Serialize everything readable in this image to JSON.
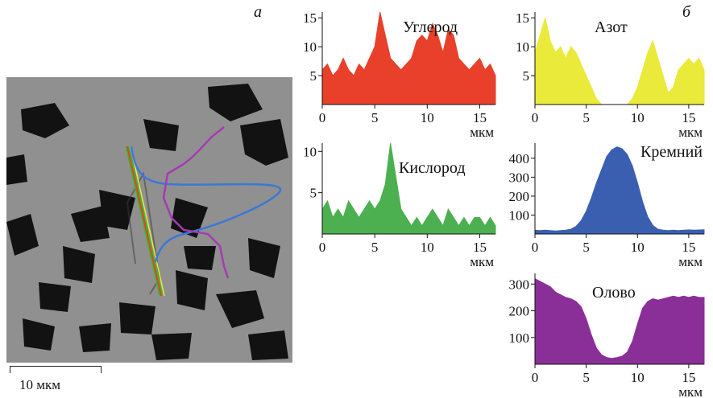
{
  "panel_labels": {
    "a": "а",
    "b": "б"
  },
  "scale_bar": {
    "label": "10 мкм",
    "length_um": 10
  },
  "colors": {
    "carbon": "#e8402a",
    "nitrogen": "#eaea3a",
    "oxygen": "#4caf50",
    "silicon": "#3a5fb0",
    "tin": "#8a2f98",
    "micrograph_bg": "#8a8a8a",
    "grain": "#121212"
  },
  "chart_data": [
    {
      "type": "area",
      "title": "Углерод",
      "xlabel": "мкм",
      "ylabel": "",
      "xlim": [
        0,
        16.5
      ],
      "ylim": [
        0,
        16
      ],
      "xticks": [
        0,
        5,
        10,
        15
      ],
      "yticks": [
        5,
        10,
        15
      ],
      "x": [
        0,
        0.5,
        1,
        1.5,
        2,
        2.5,
        3,
        3.5,
        4,
        4.5,
        5,
        5.5,
        6,
        6.5,
        7,
        7.5,
        8,
        8.5,
        9,
        9.5,
        10,
        10.5,
        11,
        11.5,
        12,
        12.5,
        13,
        13.5,
        14,
        14.5,
        15,
        15.5,
        16,
        16.5
      ],
      "y": [
        6,
        7,
        5,
        6,
        8,
        6,
        5,
        7,
        6,
        8,
        10,
        16,
        12,
        8,
        7,
        6,
        7,
        8,
        11,
        12,
        11,
        14,
        12,
        9,
        13,
        12,
        8,
        7,
        6,
        7,
        8,
        6,
        7,
        5
      ],
      "color_key": "carbon"
    },
    {
      "type": "area",
      "title": "Азот",
      "xlabel": "мкм",
      "ylabel": "",
      "xlim": [
        0,
        16.5
      ],
      "ylim": [
        0,
        16
      ],
      "xticks": [
        0,
        5,
        10,
        15
      ],
      "yticks": [
        5,
        10,
        15
      ],
      "x": [
        0,
        0.5,
        1,
        1.5,
        2,
        2.5,
        3,
        3.5,
        4,
        4.5,
        5,
        5.5,
        6,
        6.5,
        7,
        7.5,
        8,
        8.5,
        9,
        9.5,
        10,
        10.5,
        11,
        11.5,
        12,
        12.5,
        13,
        13.5,
        14,
        14.5,
        15,
        15.5,
        16,
        16.5
      ],
      "y": [
        9,
        12,
        15,
        11,
        9,
        10,
        8,
        10,
        9,
        7,
        5,
        3,
        1,
        0,
        0,
        0,
        0,
        0,
        0,
        1,
        3,
        6,
        9,
        11,
        8,
        5,
        2,
        3,
        6,
        7,
        8,
        7,
        8,
        6
      ],
      "color_key": "nitrogen"
    },
    {
      "type": "area",
      "title": "Кислород",
      "xlabel": "мкм",
      "ylabel": "",
      "xlim": [
        0,
        16.5
      ],
      "ylim": [
        0,
        11
      ],
      "xticks": [
        0,
        5,
        10,
        15
      ],
      "yticks": [
        5,
        10
      ],
      "x": [
        0,
        0.5,
        1,
        1.5,
        2,
        2.5,
        3,
        3.5,
        4,
        4.5,
        5,
        5.5,
        6,
        6.5,
        7,
        7.5,
        8,
        8.5,
        9,
        9.5,
        10,
        10.5,
        11,
        11.5,
        12,
        12.5,
        13,
        13.5,
        14,
        14.5,
        15,
        15.5,
        16,
        16.5
      ],
      "y": [
        3,
        4,
        2,
        3,
        2,
        4,
        3,
        2,
        3,
        4,
        3,
        4,
        6,
        11,
        7,
        3,
        2,
        1,
        2,
        1,
        2,
        3,
        2,
        1,
        3,
        2,
        1,
        2,
        1,
        2,
        2,
        1,
        2,
        1
      ],
      "color_key": "oxygen"
    },
    {
      "type": "area",
      "title": "Кремний",
      "xlabel": "мкм",
      "ylabel": "",
      "xlim": [
        0,
        16.5
      ],
      "ylim": [
        0,
        480
      ],
      "xticks": [
        0,
        5,
        10,
        15
      ],
      "yticks": [
        100,
        200,
        300,
        400
      ],
      "x": [
        0,
        0.5,
        1,
        1.5,
        2,
        2.5,
        3,
        3.5,
        4,
        4.5,
        5,
        5.5,
        6,
        6.5,
        7,
        7.5,
        8,
        8.5,
        9,
        9.5,
        10,
        10.5,
        11,
        11.5,
        12,
        12.5,
        13,
        13.5,
        14,
        14.5,
        15,
        15.5,
        16,
        16.5
      ],
      "y": [
        20,
        18,
        20,
        18,
        16,
        18,
        20,
        25,
        40,
        70,
        120,
        190,
        270,
        340,
        410,
        445,
        460,
        450,
        420,
        360,
        270,
        170,
        90,
        45,
        25,
        20,
        18,
        20,
        18,
        20,
        22,
        20,
        21,
        22
      ],
      "color_key": "silicon"
    },
    {
      "type": "area",
      "title": "Олово",
      "xlabel": "мкм",
      "ylabel": "",
      "xlim": [
        0,
        16.5
      ],
      "ylim": [
        0,
        340
      ],
      "xticks": [
        0,
        5,
        10,
        15
      ],
      "yticks": [
        100,
        200,
        300
      ],
      "x": [
        0,
        0.5,
        1,
        1.5,
        2,
        2.5,
        3,
        3.5,
        4,
        4.5,
        5,
        5.5,
        6,
        6.5,
        7,
        7.5,
        8,
        8.5,
        9,
        9.5,
        10,
        10.5,
        11,
        11.5,
        12,
        12.5,
        13,
        13.5,
        14,
        14.5,
        15,
        15.5,
        16,
        16.5
      ],
      "y": [
        320,
        310,
        300,
        290,
        270,
        260,
        250,
        245,
        235,
        215,
        170,
        110,
        60,
        35,
        25,
        22,
        25,
        30,
        45,
        85,
        150,
        210,
        235,
        245,
        240,
        245,
        250,
        255,
        250,
        255,
        250,
        255,
        250,
        250
      ],
      "color_key": "tin"
    }
  ]
}
